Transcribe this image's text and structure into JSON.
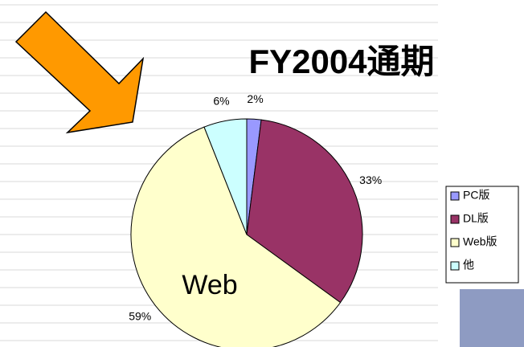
{
  "chart_data": {
    "type": "pie",
    "title": "FY2004通期",
    "categories": [
      "PC版",
      "DL版",
      "Web版",
      "他"
    ],
    "values": [
      2,
      33,
      59,
      6
    ],
    "value_labels": [
      "2%",
      "33%",
      "59%",
      "6%"
    ],
    "colors": [
      "#9999ff",
      "#993366",
      "#ffffcc",
      "#ccffff"
    ],
    "annotation": "Web",
    "legend": "right"
  }
}
